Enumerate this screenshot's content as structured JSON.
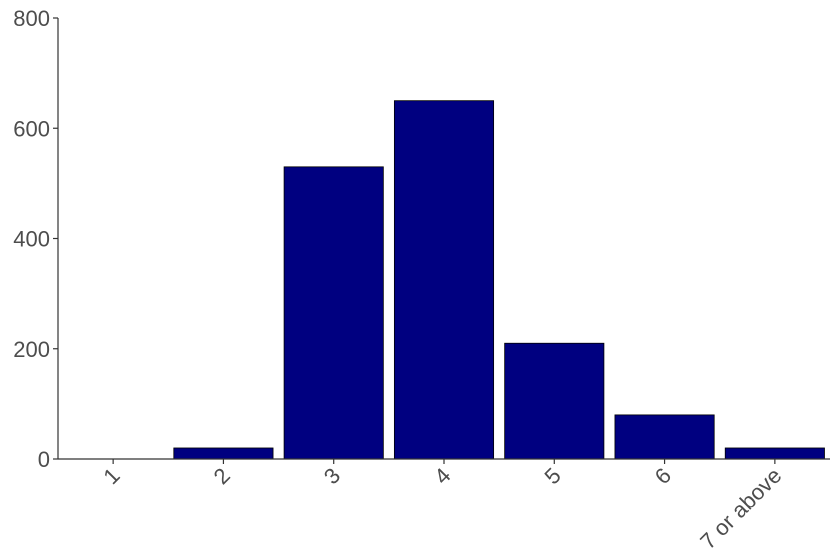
{
  "chart_data": {
    "type": "bar",
    "title": "",
    "xlabel": "",
    "ylabel": "",
    "categories": [
      "1",
      "2",
      "3",
      "4",
      "5",
      "6",
      "7 or above"
    ],
    "values": [
      0,
      20,
      530,
      650,
      210,
      80,
      20
    ],
    "ylim": [
      0,
      800
    ],
    "yticks": [
      0,
      200,
      400,
      600,
      800
    ],
    "grid": false,
    "bar_color": "#000080"
  }
}
